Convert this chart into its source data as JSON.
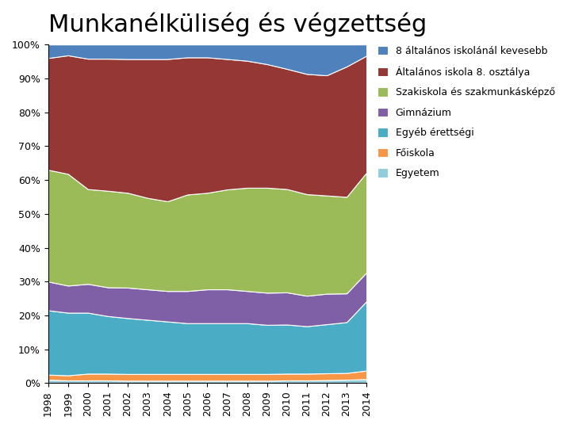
{
  "title": "Munkanélküliség és végzettség",
  "years": [
    1998,
    1999,
    2000,
    2001,
    2002,
    2003,
    2004,
    2005,
    2006,
    2007,
    2008,
    2009,
    2010,
    2011,
    2012,
    2013,
    2014
  ],
  "series_bottom_to_top": [
    {
      "label": "Egyetem",
      "color": "#92CDDC",
      "values": [
        1.0,
        0.8,
        0.8,
        0.8,
        0.7,
        0.7,
        0.7,
        0.7,
        0.7,
        0.7,
        0.7,
        0.7,
        0.8,
        0.8,
        0.9,
        1.0,
        1.2
      ]
    },
    {
      "label": "Főiskola",
      "color": "#F79646",
      "values": [
        1.5,
        1.5,
        2.0,
        2.0,
        2.0,
        2.0,
        2.0,
        2.0,
        2.0,
        2.0,
        2.0,
        2.0,
        2.0,
        2.0,
        2.0,
        2.0,
        2.5
      ]
    },
    {
      "label": "Egyéb érettségi",
      "color": "#4BACC6",
      "values": [
        19.0,
        18.5,
        18.0,
        17.0,
        16.5,
        16.0,
        15.5,
        15.0,
        15.0,
        15.0,
        15.0,
        14.5,
        14.5,
        14.0,
        14.5,
        15.0,
        20.5
      ]
    },
    {
      "label": "Gimnázium",
      "color": "#7F5FA5",
      "values": [
        8.5,
        8.0,
        8.5,
        8.5,
        9.0,
        9.0,
        9.0,
        9.5,
        10.0,
        10.0,
        9.5,
        9.5,
        9.5,
        9.0,
        9.0,
        8.5,
        8.5
      ]
    },
    {
      "label": "Szakiskola és szakmunkásképző",
      "color": "#9BBB59",
      "values": [
        33.0,
        33.0,
        28.0,
        28.5,
        28.0,
        27.0,
        26.5,
        28.5,
        28.5,
        29.5,
        30.5,
        31.0,
        30.5,
        30.0,
        29.0,
        28.5,
        29.5
      ]
    },
    {
      "label": "Általános iskola 8. osztálya",
      "color": "#953735",
      "values": [
        33.0,
        35.0,
        38.5,
        39.0,
        39.5,
        41.0,
        42.0,
        40.5,
        40.0,
        38.5,
        37.5,
        36.5,
        35.5,
        35.5,
        35.5,
        38.5,
        34.5
      ]
    },
    {
      "label": "8 általános iskolánál kevesebb",
      "color": "#4F81BD",
      "values": [
        4.0,
        3.2,
        4.2,
        4.2,
        4.3,
        4.3,
        4.3,
        3.8,
        3.8,
        4.3,
        4.8,
        5.8,
        7.2,
        8.7,
        9.1,
        6.5,
        3.3
      ]
    }
  ],
  "background_color": "#FFFFFF",
  "title_fontsize": 22,
  "tick_fontsize": 9,
  "legend_fontsize": 9
}
